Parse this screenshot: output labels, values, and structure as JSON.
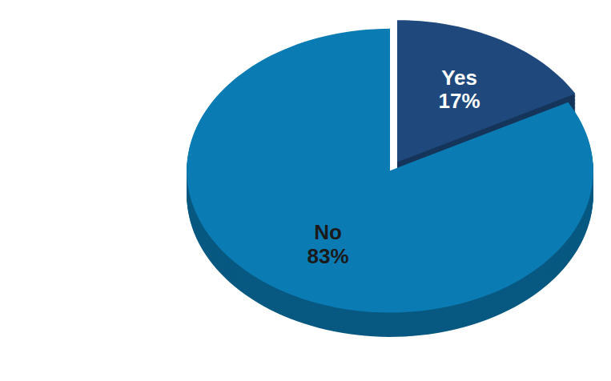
{
  "chart_data": {
    "type": "pie",
    "categories": [
      "Yes",
      "No"
    ],
    "values": [
      17,
      83
    ],
    "value_labels": [
      "17%",
      "83%"
    ],
    "colors": [
      "#1f497d",
      "#0b7bb3"
    ],
    "data_labels": true
  }
}
